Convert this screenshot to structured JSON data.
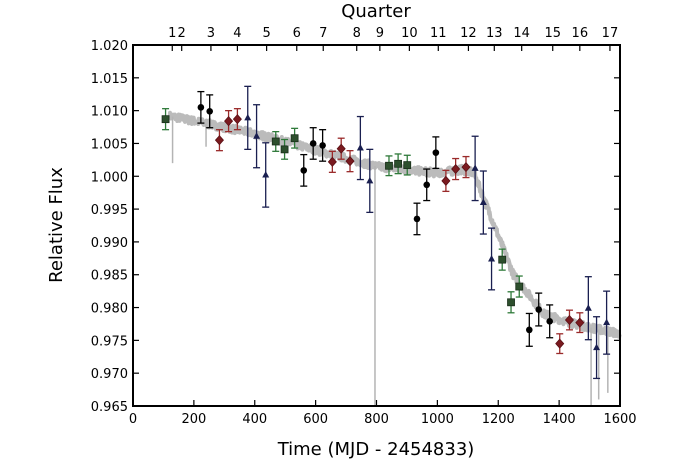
{
  "chart_data": {
    "type": "scatter",
    "xlabel": "Time (MJD - 2454833)",
    "ylabel": "Relative Flux",
    "top_axis_label": "Quarter",
    "xlim": [
      0,
      1600
    ],
    "ylim": [
      0.965,
      1.02
    ],
    "xticks": [
      0,
      200,
      400,
      600,
      800,
      1000,
      1200,
      1400,
      1600
    ],
    "xtick_labels": [
      "0",
      "200",
      "400",
      "600",
      "800",
      "1000",
      "1200",
      "1400",
      "1600"
    ],
    "yticks": [
      0.965,
      0.97,
      0.975,
      0.98,
      0.985,
      0.99,
      0.995,
      1.0,
      1.005,
      1.01,
      1.015,
      1.02
    ],
    "ytick_labels": [
      "0.965",
      "0.970",
      "0.975",
      "0.980",
      "0.985",
      "0.990",
      "0.995",
      "1.000",
      "1.005",
      "1.010",
      "1.015",
      "1.020"
    ],
    "quarters": [
      {
        "label": "1",
        "x": 129
      },
      {
        "label": "2",
        "x": 160
      },
      {
        "label": "3",
        "x": 256
      },
      {
        "label": "4",
        "x": 343
      },
      {
        "label": "5",
        "x": 439
      },
      {
        "label": "6",
        "x": 538
      },
      {
        "label": "7",
        "x": 625
      },
      {
        "label": "8",
        "x": 735
      },
      {
        "label": "9",
        "x": 811
      },
      {
        "label": "10",
        "x": 908
      },
      {
        "label": "11",
        "x": 1003
      },
      {
        "label": "12",
        "x": 1102
      },
      {
        "label": "13",
        "x": 1187
      },
      {
        "label": "14",
        "x": 1277
      },
      {
        "label": "15",
        "x": 1379
      },
      {
        "label": "16",
        "x": 1468
      },
      {
        "label": "17",
        "x": 1567
      }
    ],
    "light_curve_trend": {
      "x": [
        120,
        400,
        600,
        800,
        1000,
        1080,
        1120,
        1250,
        1350,
        1450,
        1600
      ],
      "y": [
        1.0092,
        1.0065,
        1.004,
        1.0015,
        1.0005,
        1.001,
        1.0005,
        0.985,
        0.979,
        0.9775,
        0.976
      ],
      "color": "#b4b4b4"
    },
    "light_curve_dips": [
      {
        "x": 130,
        "y": 1.002
      },
      {
        "x": 240,
        "y": 1.0045
      },
      {
        "x": 795,
        "y": 0.965
      },
      {
        "x": 1505,
        "y": 0.965
      },
      {
        "x": 1530,
        "y": 0.966
      },
      {
        "x": 1560,
        "y": 0.967
      }
    ],
    "series": [
      {
        "name": "circles",
        "marker": "circle",
        "color": "#000000",
        "err_color": "#000000",
        "points": [
          [
            223,
            1.0105,
            0.0024
          ],
          [
            252,
            1.0099,
            0.0025
          ],
          [
            561,
            1.0009,
            0.0024
          ],
          [
            592,
            1.005,
            0.0024
          ],
          [
            623,
            1.0047,
            0.0024
          ],
          [
            933,
            0.9935,
            0.0024
          ],
          [
            965,
            0.9987,
            0.0024
          ],
          [
            995,
            1.0036,
            0.0024
          ],
          [
            1302,
            0.9766,
            0.0025
          ],
          [
            1333,
            0.9797,
            0.0025
          ],
          [
            1369,
            0.9779,
            0.0025
          ]
        ]
      },
      {
        "name": "diamonds",
        "marker": "diamond",
        "color": "#7a1a1f",
        "err_color": "#9a2a2a",
        "points": [
          [
            284,
            1.0055,
            0.0016
          ],
          [
            314,
            1.0084,
            0.0016
          ],
          [
            343,
            1.0087,
            0.0016
          ],
          [
            655,
            1.0022,
            0.0016
          ],
          [
            684,
            1.0042,
            0.0016
          ],
          [
            713,
            1.0023,
            0.0016
          ],
          [
            1028,
            0.9993,
            0.0016
          ],
          [
            1060,
            1.0011,
            0.0016
          ],
          [
            1094,
            1.0014,
            0.0016
          ],
          [
            1402,
            0.9745,
            0.0015
          ],
          [
            1434,
            0.9781,
            0.0015
          ],
          [
            1468,
            0.9777,
            0.0015
          ]
        ]
      },
      {
        "name": "triangles",
        "marker": "triangle",
        "color": "#1a1f50",
        "err_color": "#1a1f50",
        "points": [
          [
            377,
            1.0089,
            0.0048
          ],
          [
            406,
            1.0061,
            0.0048
          ],
          [
            436,
            1.0002,
            0.0049
          ],
          [
            747,
            1.0043,
            0.0048
          ],
          [
            778,
            0.9993,
            0.0048
          ],
          [
            1124,
            1.0012,
            0.0049
          ],
          [
            1151,
            0.996,
            0.0048
          ],
          [
            1178,
            0.9874,
            0.0047
          ],
          [
            1496,
            0.9799,
            0.0048
          ],
          [
            1523,
            0.9739,
            0.0047
          ],
          [
            1556,
            0.9777,
            0.0048
          ]
        ]
      },
      {
        "name": "squares",
        "marker": "square",
        "color": "#2d4f2d",
        "err_color": "#2f7a3a",
        "points": [
          [
            107,
            1.0087,
            0.0016
          ],
          [
            469,
            1.0053,
            0.0015
          ],
          [
            498,
            1.0041,
            0.0015
          ],
          [
            531,
            1.0058,
            0.0015
          ],
          [
            841,
            1.0016,
            0.0015
          ],
          [
            871,
            1.0019,
            0.0015
          ],
          [
            901,
            1.0017,
            0.0015
          ],
          [
            1213,
            0.9873,
            0.0016
          ],
          [
            1242,
            0.9808,
            0.0016
          ],
          [
            1269,
            0.9832,
            0.0016
          ]
        ]
      }
    ]
  }
}
